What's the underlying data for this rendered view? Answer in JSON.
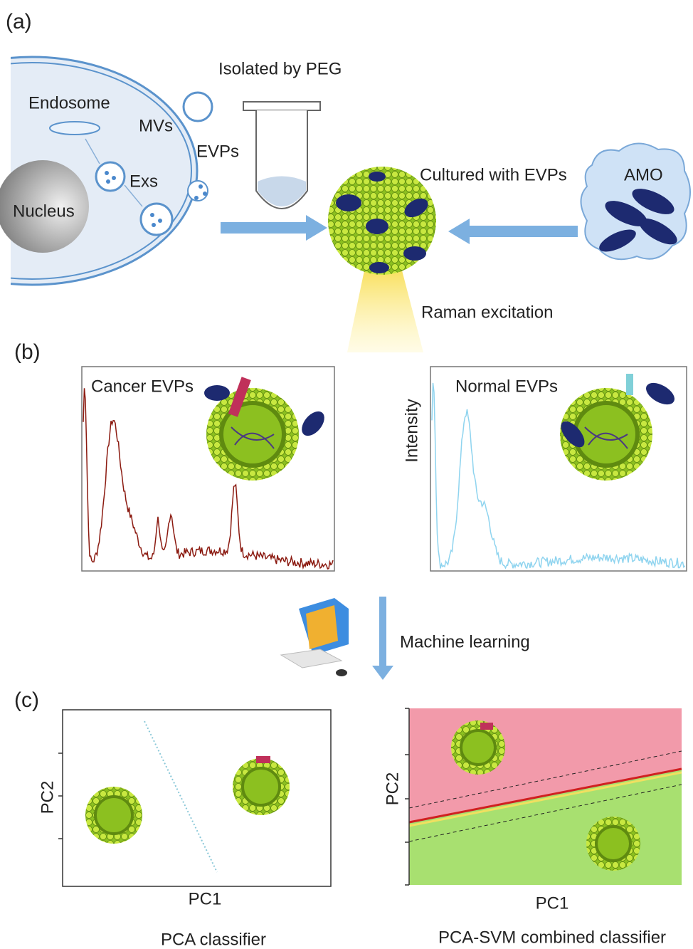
{
  "panel_a": {
    "label": "(a)",
    "isolated": "Isolated by PEG",
    "endosome": "Endosome",
    "mvs": "MVs",
    "evps": "EVPs",
    "exs": "Exs",
    "nucleus": "Nucleus",
    "cultured": "Cultured with EVPs",
    "amo": "AMO",
    "raman": "Raman excitation"
  },
  "panel_b": {
    "label": "(b)",
    "cancer": "Cancer EVPs",
    "normal": "Normal EVPs",
    "y_label": "Intensity",
    "machine_learning": "Machine learning"
  },
  "panel_c": {
    "label": "(c)",
    "left": {
      "y_label": "PC2",
      "x_label": "PC1",
      "caption": "PCA classifier"
    },
    "right": {
      "y_label": "PC2",
      "x_label": "PC1",
      "caption": "PCA-SVM combined classifier"
    }
  }
}
